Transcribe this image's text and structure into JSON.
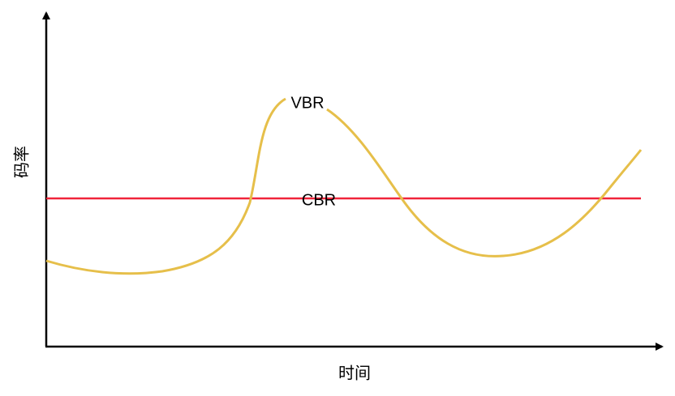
{
  "axes": {
    "y_label": "码率",
    "x_label": "时间"
  },
  "curves": [
    {
      "label": "VBR"
    },
    {
      "label": "CBR"
    }
  ]
}
